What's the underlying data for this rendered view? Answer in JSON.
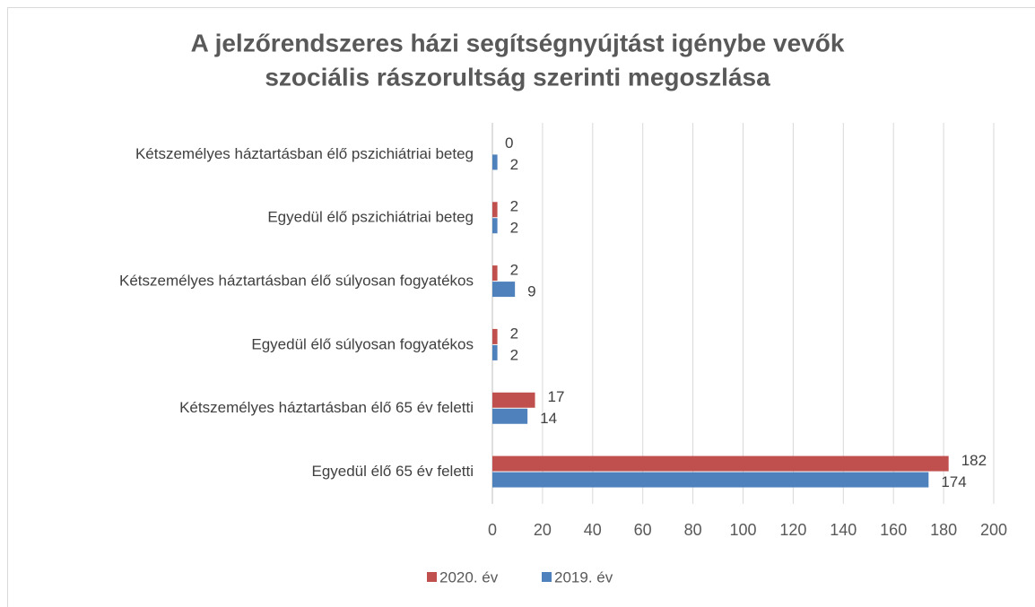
{
  "chart_data": {
    "type": "bar",
    "orientation": "horizontal",
    "title": [
      "A jelzőrendszeres házi segítségnyújtást igénybe vevők",
      "szociális rászorultság szerinti megoszlása"
    ],
    "categories": [
      "Kétszemélyes háztartásban élő pszichiátriai beteg",
      "Egyedül élő pszichiátriai beteg",
      "Kétszemélyes háztartásban élő súlyosan fogyatékos",
      "Egyedül élő súlyosan fogyatékos",
      "Kétszemélyes háztartásban élő 65 év feletti",
      "Egyedül élő 65 év feletti"
    ],
    "series": [
      {
        "name": "2020. év",
        "color": "#c0504d",
        "values": [
          0,
          2,
          2,
          2,
          17,
          182
        ]
      },
      {
        "name": "2019. év",
        "color": "#4f81bd",
        "values": [
          2,
          2,
          9,
          2,
          14,
          174
        ]
      }
    ],
    "xlim": [
      0,
      200
    ],
    "xticks": [
      0,
      20,
      40,
      60,
      80,
      100,
      120,
      140,
      160,
      180,
      200
    ],
    "grid": true,
    "legend": "bottom"
  }
}
